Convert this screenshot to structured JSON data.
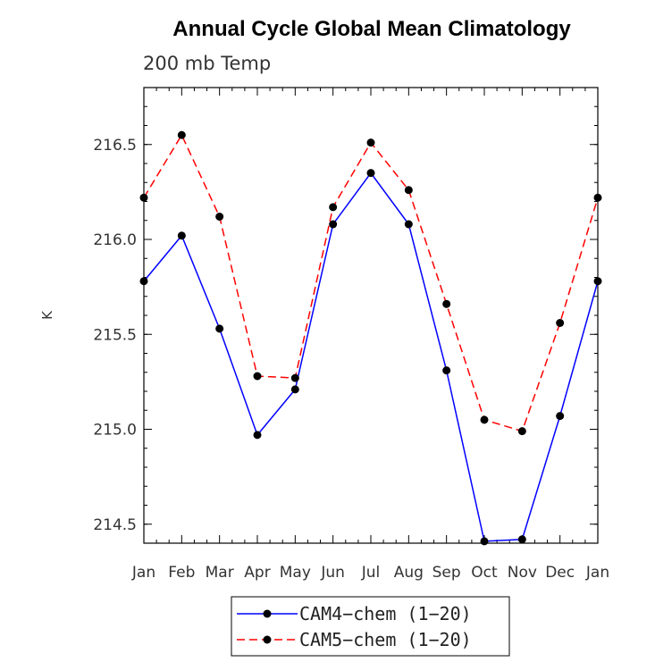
{
  "chart_data": {
    "type": "line",
    "title": "Annual Cycle Global Mean Climatology",
    "subtitle": "200 mb Temp",
    "xlabel": "",
    "ylabel": "K",
    "categories": [
      "Jan",
      "Feb",
      "Mar",
      "Apr",
      "May",
      "Jun",
      "Jul",
      "Aug",
      "Sep",
      "Oct",
      "Nov",
      "Dec",
      "Jan"
    ],
    "ylim": [
      214.4,
      216.8
    ],
    "yticks": [
      214.5,
      215.0,
      215.5,
      216.0,
      216.5
    ],
    "ytick_labels": [
      "214.5",
      "215.0",
      "215.5",
      "216.0",
      "216.5"
    ],
    "series": [
      {
        "name": "CAM4−chem (1−20)",
        "color": "#0000ff",
        "dash": "solid",
        "values": [
          215.78,
          216.02,
          215.53,
          214.97,
          215.21,
          216.08,
          216.35,
          216.08,
          215.31,
          214.41,
          214.42,
          215.07,
          215.78
        ]
      },
      {
        "name": "CAM5−chem (1−20)",
        "color": "#ff0000",
        "dash": "dashed",
        "values": [
          216.22,
          216.55,
          216.12,
          215.28,
          215.27,
          216.17,
          216.51,
          216.26,
          215.66,
          215.05,
          214.99,
          215.56,
          216.22
        ]
      }
    ],
    "legend_position": "bottom-center",
    "marker": "filled-circle",
    "marker_color": "#000000"
  }
}
